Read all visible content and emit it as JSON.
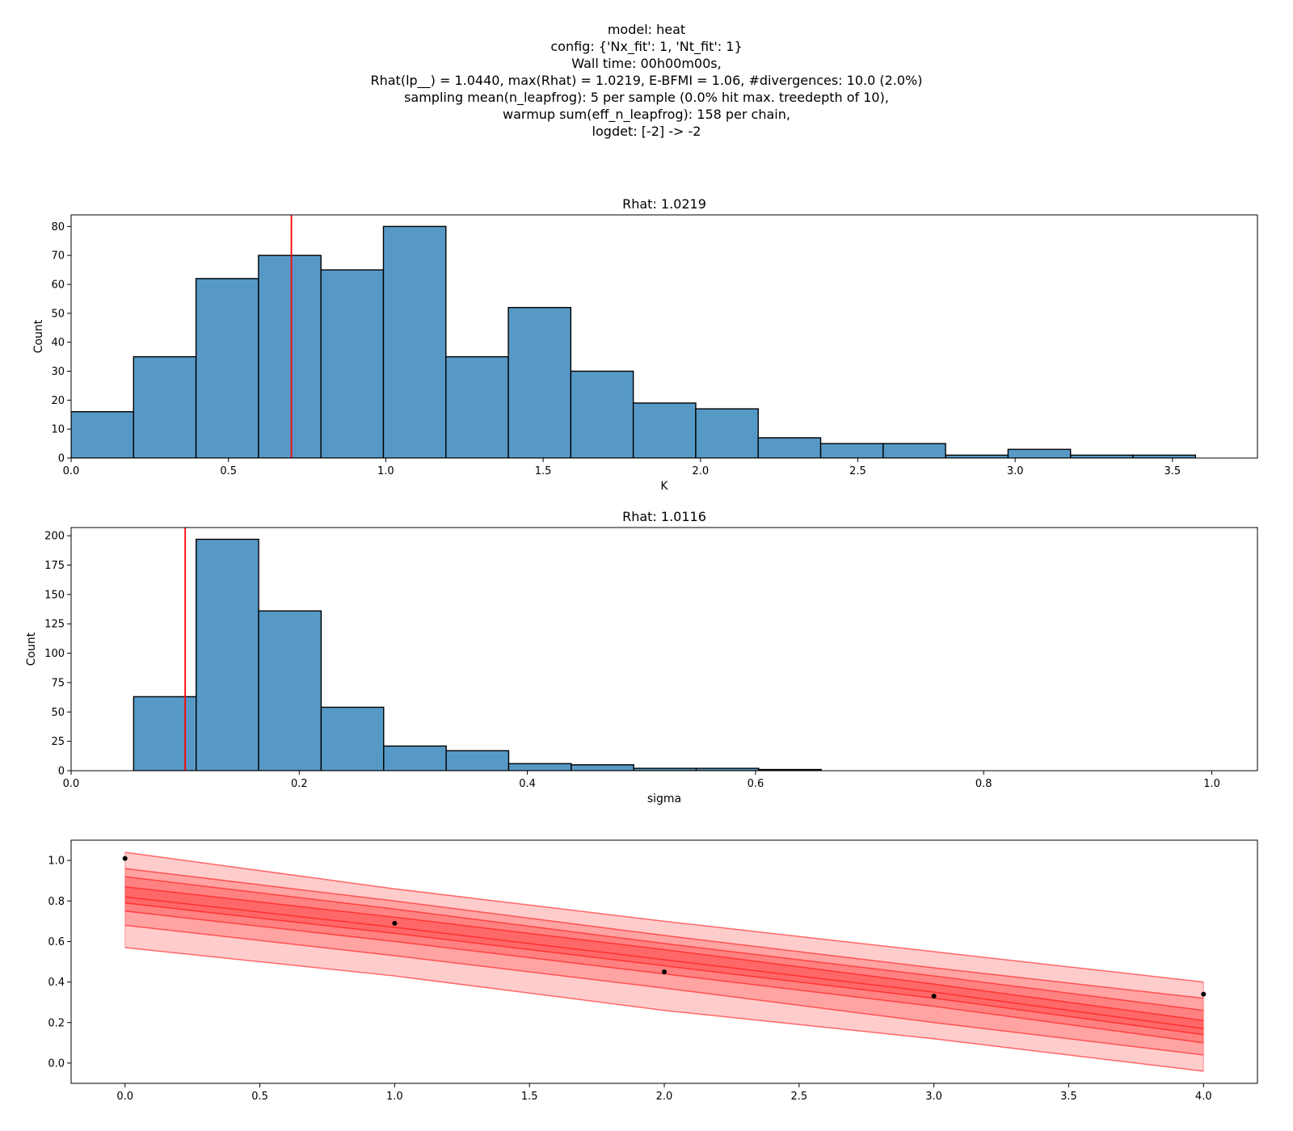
{
  "suptitle": {
    "lines": [
      "model: heat",
      "config: {'Nx_fit': 1, 'Nt_fit': 1}",
      "Wall time: 00h00m00s,",
      "Rhat(lp__) = 1.0440, max(Rhat) = 1.0219, E-BFMI = 1.06, #divergences: 10.0 (2.0%)",
      "sampling mean(n_leapfrog): 5 per sample (0.0% hit max. treedepth of 10),",
      "warmup sum(eff_n_leapfrog): 158 per chain,",
      "logdet: [-2] -> -2"
    ]
  },
  "colors": {
    "bar_fill": "#5799c6",
    "bar_edge": "#000000",
    "ref_line": "#ff0000",
    "band_fill": "#ff0000",
    "band_edge": "#ff0000",
    "point": "#000000"
  },
  "chart_data": [
    {
      "type": "bar",
      "subtype": "histogram",
      "title": "Rhat: 1.0219",
      "xlabel": "K",
      "ylabel": "Count",
      "xlim": [
        0.0,
        3.77
      ],
      "ylim": [
        0,
        84
      ],
      "xticks": [
        0.0,
        0.5,
        1.0,
        1.5,
        2.0,
        2.5,
        3.0,
        3.5
      ],
      "xtick_labels": [
        "0.0",
        "0.5",
        "1.0",
        "1.5",
        "2.0",
        "2.5",
        "3.0",
        "3.5"
      ],
      "yticks": [
        0,
        10,
        20,
        30,
        40,
        50,
        60,
        70,
        80
      ],
      "ytick_labels": [
        "0",
        "10",
        "20",
        "30",
        "40",
        "50",
        "60",
        "70",
        "80"
      ],
      "bin_edges": [
        0.0,
        0.1985,
        0.397,
        0.5955,
        0.794,
        0.9925,
        1.191,
        1.3895,
        1.588,
        1.7865,
        1.985,
        2.1835,
        2.382,
        2.5805,
        2.779,
        2.9775,
        3.176,
        3.3745,
        3.573
      ],
      "values": [
        16,
        35,
        62,
        70,
        65,
        80,
        35,
        52,
        30,
        19,
        17,
        7,
        5,
        5,
        1,
        3,
        1,
        1
      ],
      "ref_line_x": 0.7
    },
    {
      "type": "bar",
      "subtype": "histogram",
      "title": "Rhat: 1.0116",
      "xlabel": "sigma",
      "ylabel": "Count",
      "xlim": [
        0.0,
        1.04
      ],
      "ylim": [
        0,
        207
      ],
      "xticks": [
        0.0,
        0.2,
        0.4,
        0.6,
        0.8,
        1.0
      ],
      "xtick_labels": [
        "0.0",
        "0.2",
        "0.4",
        "0.6",
        "0.8",
        "1.0"
      ],
      "yticks": [
        0,
        25,
        50,
        75,
        100,
        125,
        150,
        175,
        200
      ],
      "ytick_labels": [
        "0",
        "25",
        "50",
        "75",
        "100",
        "125",
        "150",
        "175",
        "200"
      ],
      "bin_edges": [
        0.0548,
        0.1096,
        0.1644,
        0.2192,
        0.274,
        0.3288,
        0.3836,
        0.4384,
        0.4932,
        0.548,
        0.6028,
        0.6576
      ],
      "values": [
        63,
        197,
        136,
        54,
        21,
        17,
        6,
        5,
        2,
        2,
        1
      ],
      "ref_line_x": 0.1
    },
    {
      "type": "area",
      "title": "",
      "xlabel": "",
      "ylabel": "",
      "xlim": [
        -0.2,
        4.2
      ],
      "ylim": [
        -0.1,
        1.1
      ],
      "xticks": [
        0.0,
        0.5,
        1.0,
        1.5,
        2.0,
        2.5,
        3.0,
        3.5,
        4.0
      ],
      "xtick_labels": [
        "0.0",
        "0.5",
        "1.0",
        "1.5",
        "2.0",
        "2.5",
        "3.0",
        "3.5",
        "4.0"
      ],
      "yticks": [
        0.0,
        0.2,
        0.4,
        0.6,
        0.8,
        1.0
      ],
      "ytick_labels": [
        "0.0",
        "0.2",
        "0.4",
        "0.6",
        "0.8",
        "1.0"
      ],
      "band_x": [
        0,
        1,
        2,
        3,
        4
      ],
      "bands": [
        {
          "lower": [
            0.57,
            0.43,
            0.26,
            0.12,
            -0.04
          ],
          "upper": [
            1.04,
            0.86,
            0.7,
            0.55,
            0.4
          ]
        },
        {
          "lower": [
            0.68,
            0.53,
            0.37,
            0.2,
            0.04
          ],
          "upper": [
            0.96,
            0.8,
            0.63,
            0.47,
            0.32
          ]
        },
        {
          "lower": [
            0.75,
            0.6,
            0.44,
            0.28,
            0.1
          ],
          "upper": [
            0.92,
            0.76,
            0.59,
            0.43,
            0.26
          ]
        },
        {
          "lower": [
            0.79,
            0.64,
            0.48,
            0.32,
            0.14
          ],
          "upper": [
            0.87,
            0.72,
            0.56,
            0.39,
            0.21
          ]
        }
      ],
      "median": [
        0.82,
        0.67,
        0.51,
        0.35,
        0.17
      ],
      "points": {
        "x": [
          0,
          1,
          2,
          3,
          4
        ],
        "y": [
          1.01,
          0.69,
          0.45,
          0.33,
          0.34
        ]
      }
    }
  ]
}
